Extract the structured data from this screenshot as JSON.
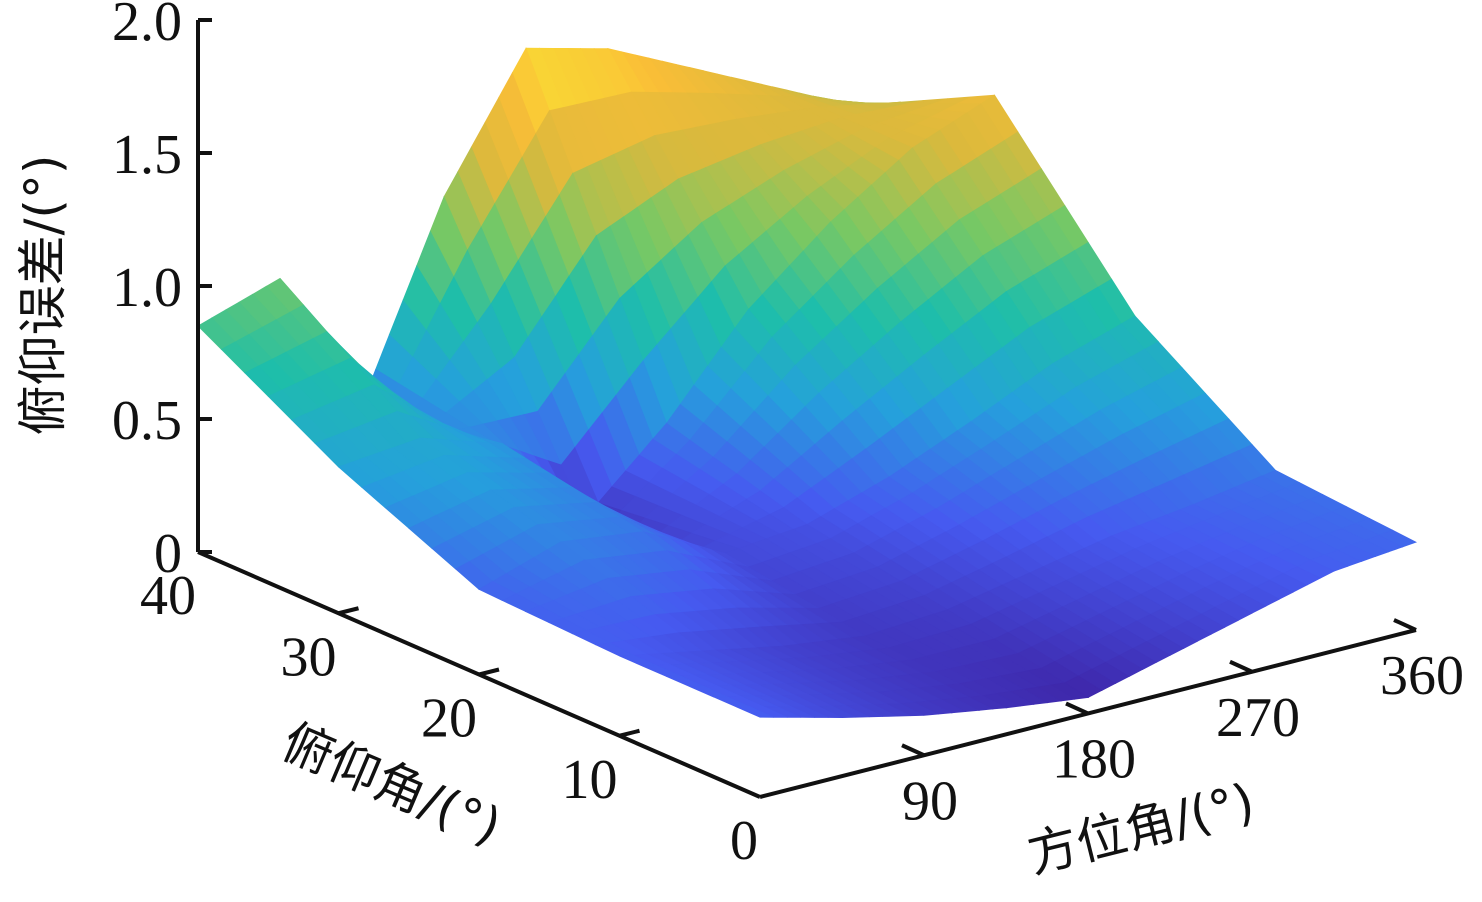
{
  "chart_data": {
    "type": "surface3d",
    "title": "",
    "zlabel": "俯仰误差/(°)",
    "ylabel": "俯仰角/(°)",
    "xlabel": "方位角/(°)",
    "z_ticks": [
      "0",
      "0.5",
      "1.0",
      "1.5",
      "2.0"
    ],
    "y_ticks": [
      "0",
      "10",
      "20",
      "30",
      "40"
    ],
    "x_ticks": [
      "90",
      "180",
      "270",
      "360"
    ],
    "zlim": [
      0,
      2.0
    ],
    "ylim": [
      0,
      40
    ],
    "xlim": [
      0,
      360
    ],
    "colormap": "parula",
    "surface": {
      "azimuth_deg": [
        0,
        45,
        90,
        135,
        180,
        225,
        270,
        315,
        360
      ],
      "elevation_deg": [
        0,
        10,
        20,
        30,
        40
      ],
      "error_deg": [
        [
          0.3,
          0.22,
          0.15,
          0.1,
          0.06,
          0.14,
          0.22,
          0.3,
          0.33
        ],
        [
          0.3,
          0.24,
          0.18,
          0.14,
          0.16,
          0.22,
          0.28,
          0.32,
          0.37
        ],
        [
          0.32,
          0.42,
          0.38,
          0.22,
          0.25,
          0.35,
          0.48,
          0.62,
          0.72
        ],
        [
          0.55,
          0.58,
          0.48,
          0.12,
          0.4,
          0.75,
          1.0,
          1.2,
          1.32
        ],
        [
          0.85,
          0.95,
          0.4,
          1.1,
          1.58,
          1.5,
          1.35,
          1.2,
          1.05
        ]
      ]
    }
  }
}
